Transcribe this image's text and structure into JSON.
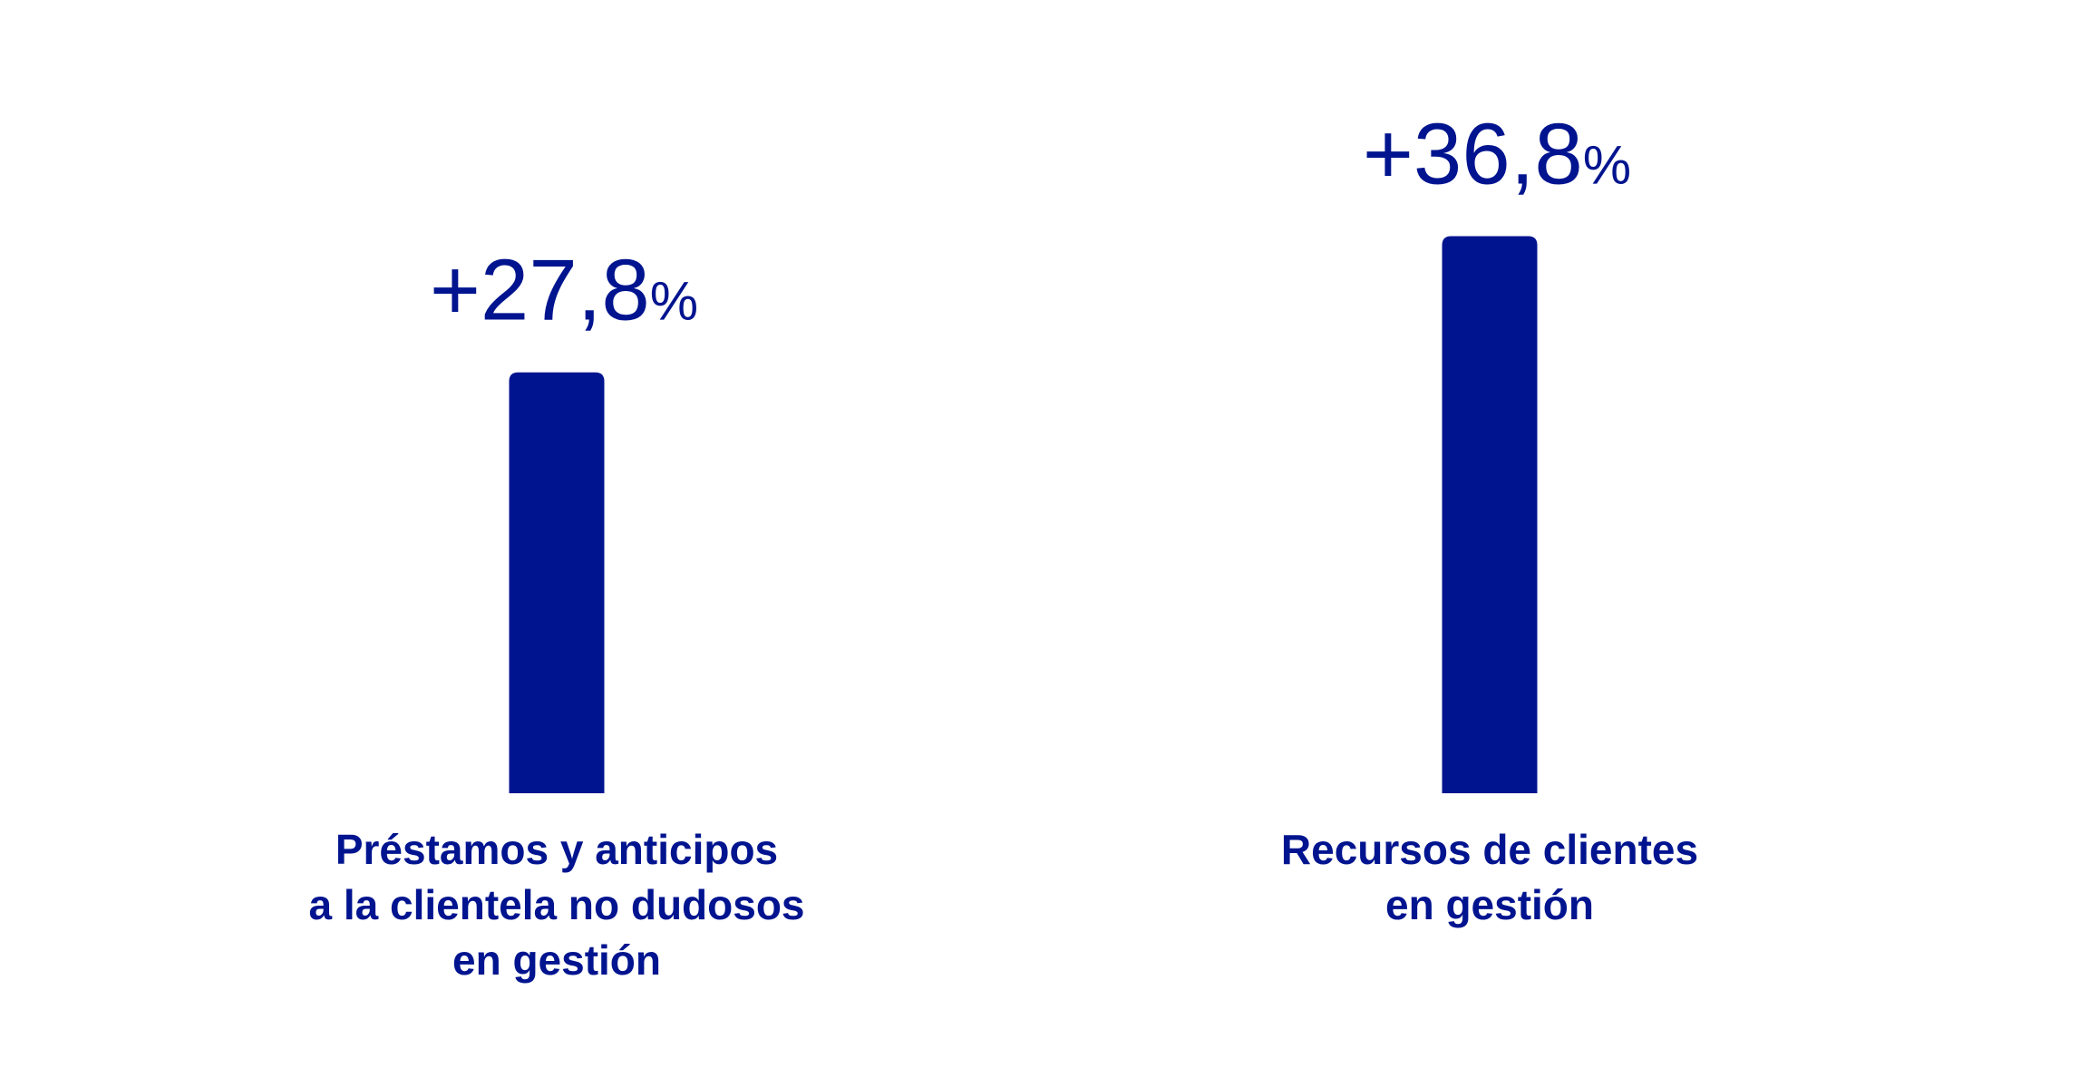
{
  "chart_data": {
    "type": "bar",
    "categories": [
      [
        "Préstamos y anticipos",
        "a la clientela no dudosos",
        "en gestión"
      ],
      [
        "Recursos de clientes",
        "en gestión"
      ]
    ],
    "values": [
      27.8,
      36.8
    ],
    "value_labels": [
      "+27,8%",
      "+36,8%"
    ],
    "color": "#00148f"
  }
}
